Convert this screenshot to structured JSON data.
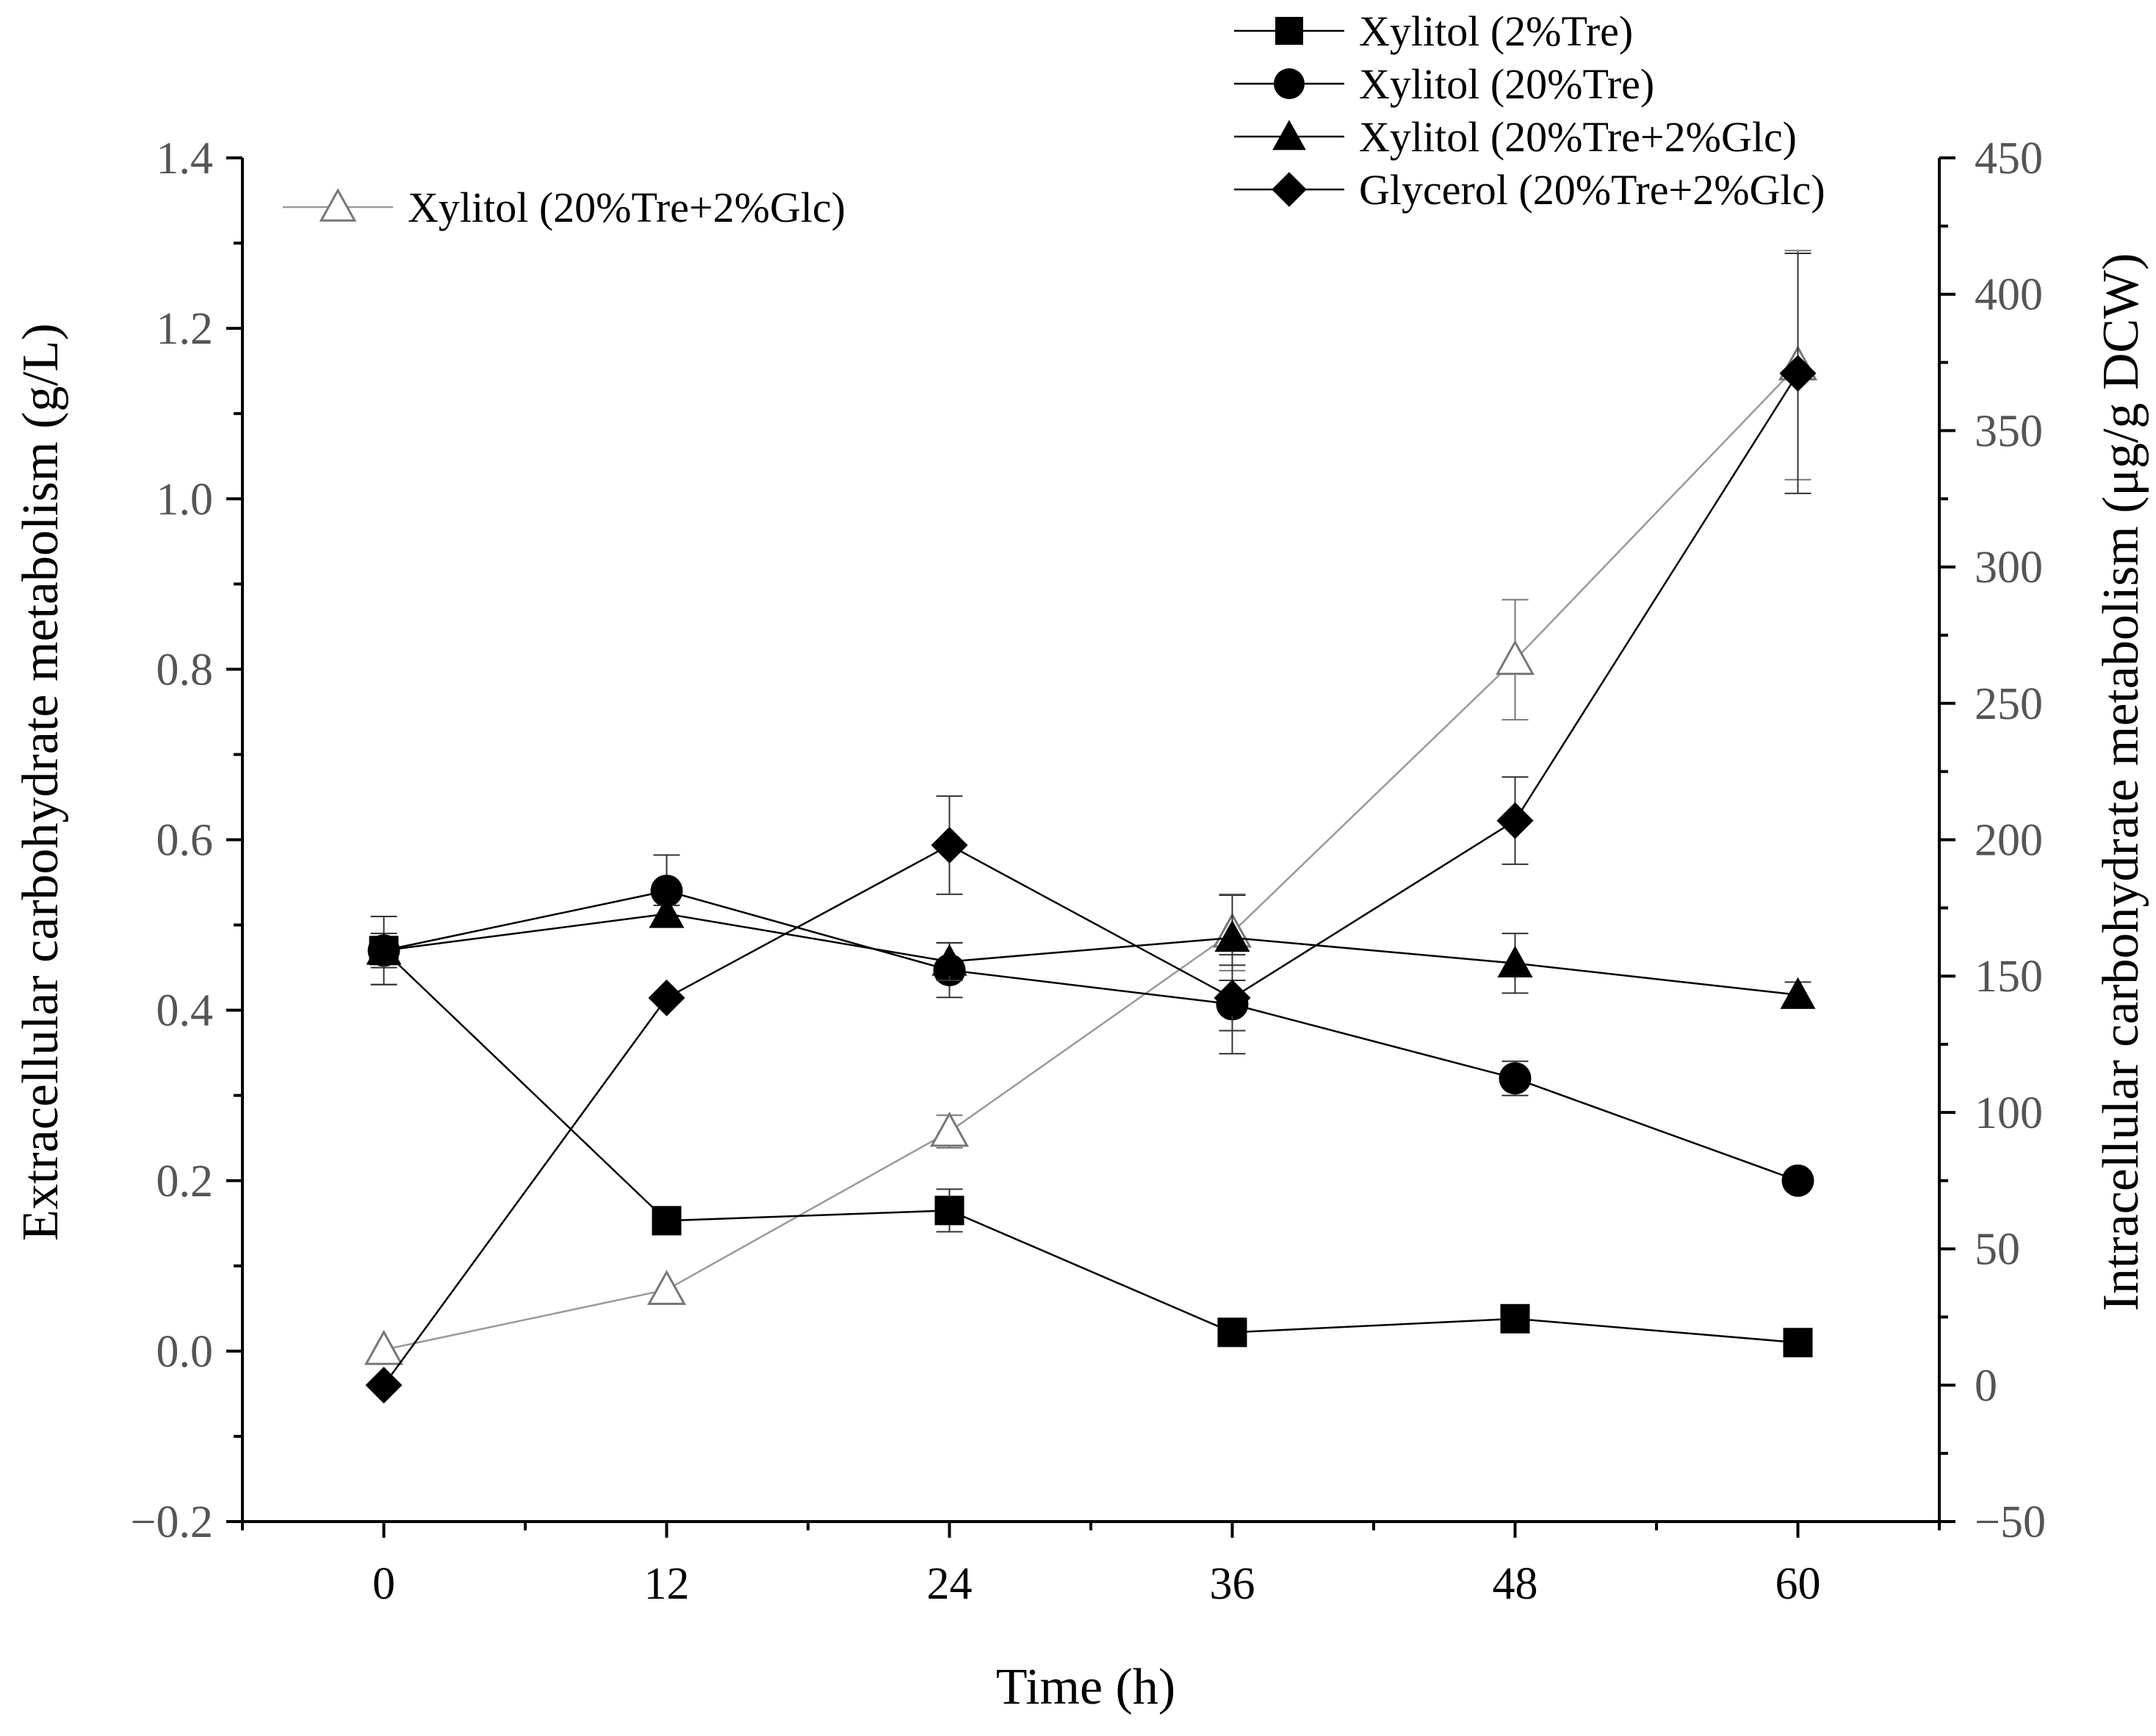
{
  "chart_data": {
    "type": "line",
    "x": [
      0,
      12,
      24,
      36,
      48,
      60
    ],
    "xlabel": "Time (h)",
    "xlim": [
      -6,
      66
    ],
    "x_ticks": [
      "0",
      "12",
      "24",
      "36",
      "48",
      "60"
    ],
    "y_left": {
      "label": "Extracellular carbohydrate metabolism (g/L)",
      "lim": [
        -0.2,
        1.4
      ],
      "ticks": [
        "−0.2",
        "0.0",
        "0.2",
        "0.4",
        "0.6",
        "0.8",
        "1.0",
        "1.2",
        "1.4"
      ]
    },
    "y_right": {
      "label": "Intracellular carbohydrate metabolism (μg/g DCW)",
      "lim": [
        -50,
        450
      ],
      "ticks": [
        "−50",
        "0",
        "50",
        "100",
        "150",
        "200",
        "250",
        "300",
        "350",
        "400",
        "450"
      ]
    },
    "series": [
      {
        "name": "Xylitol (2%Tre)",
        "axis": "left",
        "marker": "square-filled",
        "line_color": "#000000",
        "values": [
          0.47,
          0.153,
          0.165,
          0.022,
          0.038,
          0.01
        ],
        "errors": [
          0.04,
          0.008,
          0.025,
          0.008,
          0.008,
          0.005
        ]
      },
      {
        "name": "Xylitol (20%Tre)",
        "axis": "left",
        "marker": "circle-filled",
        "line_color": "#000000",
        "values": [
          0.47,
          0.54,
          0.447,
          0.407,
          0.32,
          0.2
        ],
        "errors": [
          0.04,
          0.042,
          0.032,
          0.058,
          0.02,
          0.008
        ]
      },
      {
        "name": "Xylitol (20%Tre+2%Glc)",
        "axis": "left",
        "marker": "triangle-filled",
        "line_color": "#000000",
        "values": [
          0.47,
          0.513,
          0.457,
          0.485,
          0.455,
          0.418
        ],
        "errors": [
          0.02,
          0.01,
          0.022,
          0.05,
          0.035,
          0.015
        ]
      },
      {
        "name": "Glycerol (20%Tre+2%Glc)",
        "axis": "right",
        "marker": "diamond-filled",
        "line_color": "#000000",
        "values": [
          0,
          142,
          198,
          142,
          207,
          371
        ],
        "errors": [
          0,
          0,
          18,
          12,
          16,
          44
        ]
      },
      {
        "name": "Xylitol (20%Tre+2%Glc)",
        "axis": "right",
        "marker": "triangle-open",
        "line_color": "#999999",
        "values": [
          13,
          35,
          93,
          166,
          266,
          374
        ],
        "errors": [
          0,
          0,
          6,
          14,
          22,
          42
        ]
      }
    ],
    "legends": [
      {
        "location": "top-left",
        "entries": [
          4
        ]
      },
      {
        "location": "top-right",
        "entries": [
          0,
          1,
          2,
          3
        ]
      }
    ],
    "grid": false
  }
}
